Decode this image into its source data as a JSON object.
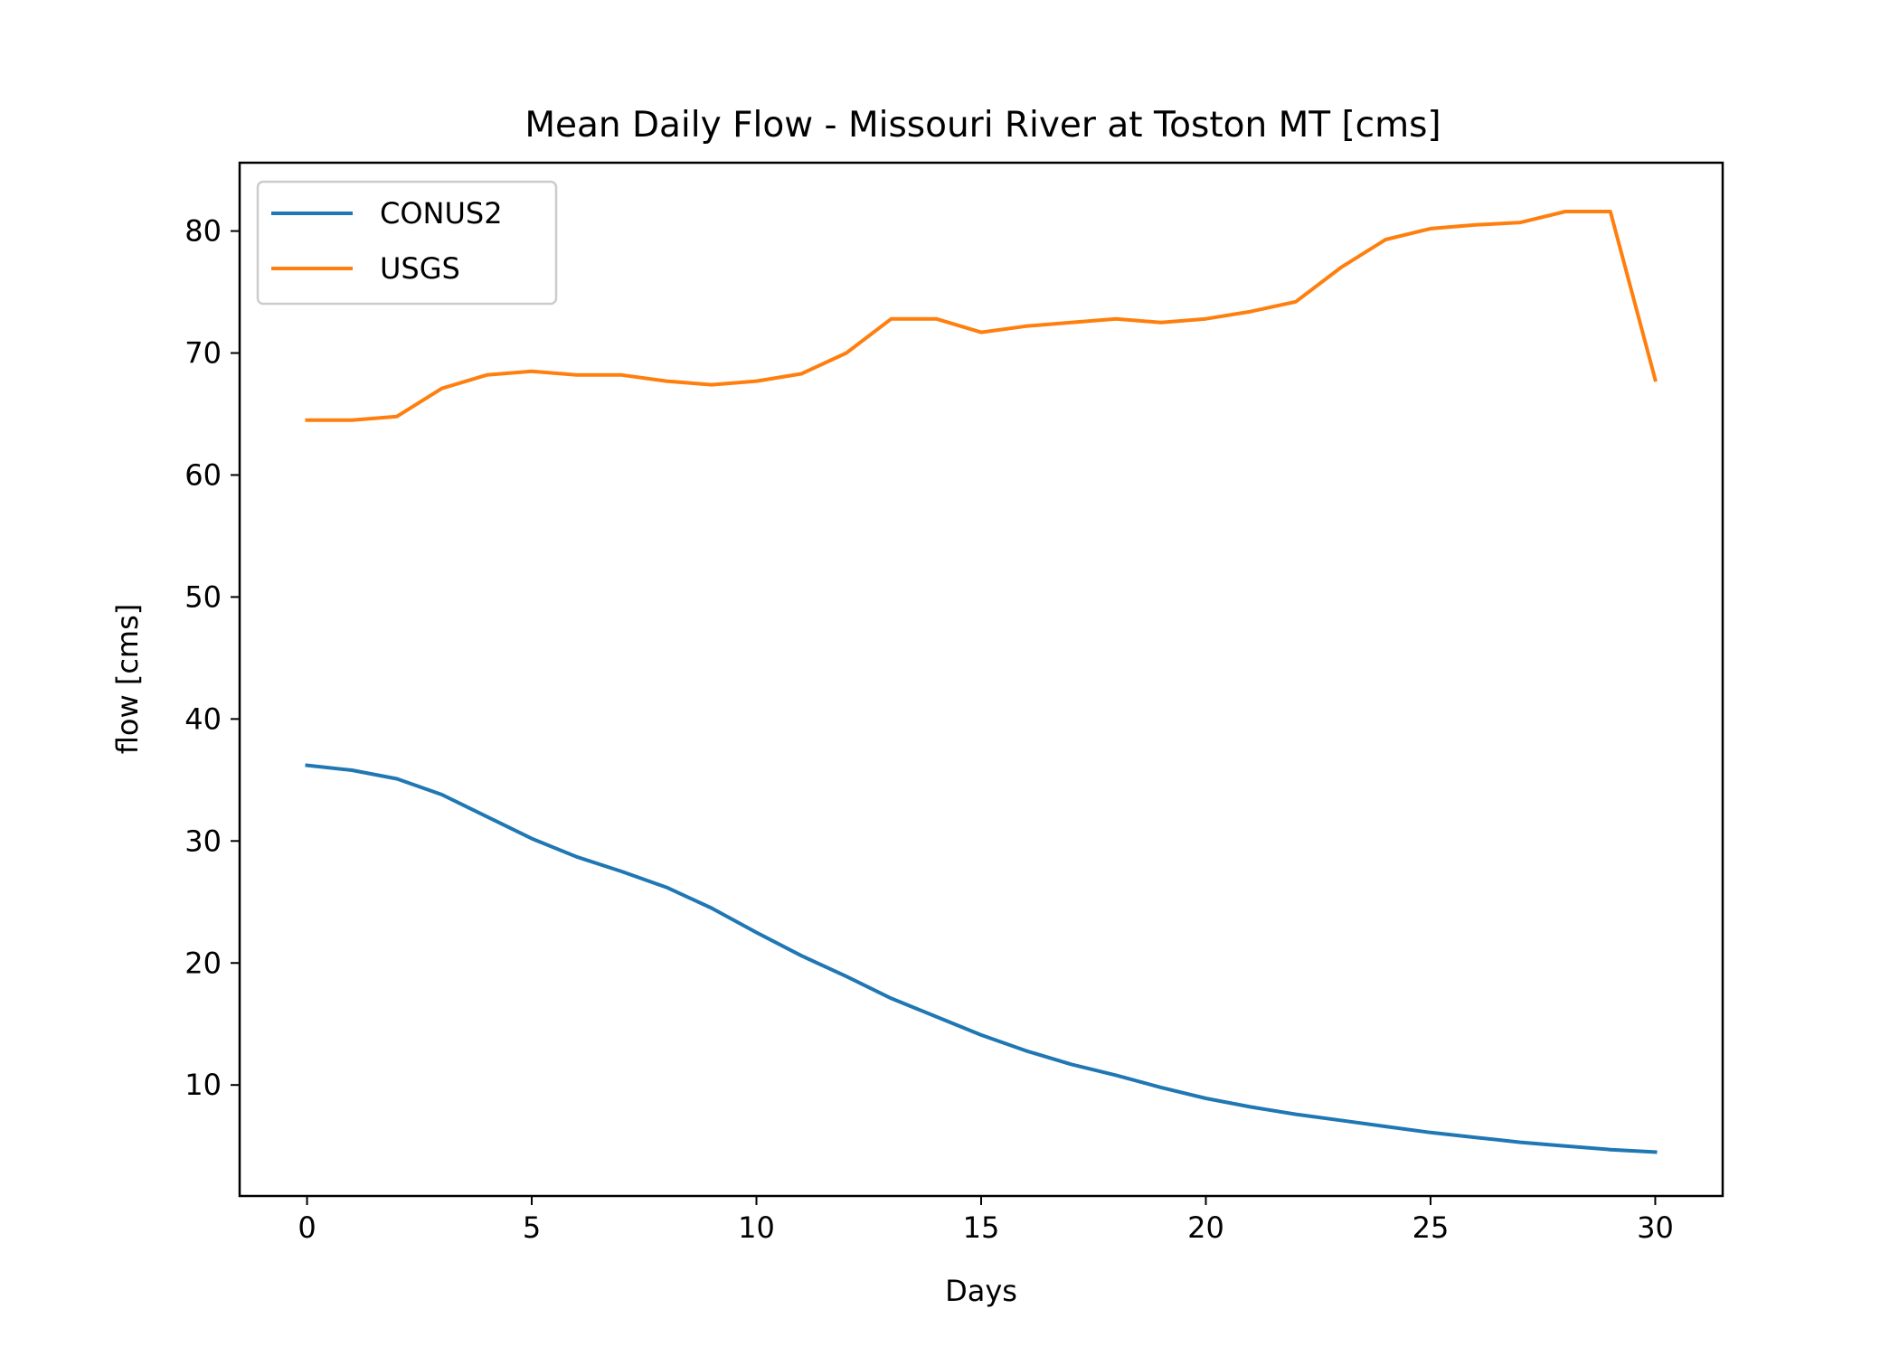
{
  "chart_data": {
    "type": "line",
    "title": "Mean Daily Flow - Missouri River at Toston MT [cms]",
    "xlabel": "Days",
    "ylabel": "flow [cms]",
    "xlim": [
      -1.5,
      31.5
    ],
    "ylim": [
      0.9,
      85.6
    ],
    "xticks": [
      0,
      5,
      10,
      15,
      20,
      25,
      30
    ],
    "yticks": [
      10,
      20,
      30,
      40,
      50,
      60,
      70,
      80
    ],
    "grid": false,
    "legend_position": "top-left",
    "x": [
      0,
      1,
      2,
      3,
      4,
      5,
      6,
      7,
      8,
      9,
      10,
      11,
      12,
      13,
      14,
      15,
      16,
      17,
      18,
      19,
      20,
      21,
      22,
      23,
      24,
      25,
      26,
      27,
      28,
      29,
      30
    ],
    "series": [
      {
        "name": "CONUS2",
        "color": "#1f77b4",
        "values": [
          36.2,
          35.8,
          35.1,
          33.8,
          32.0,
          30.2,
          28.7,
          27.5,
          26.2,
          24.5,
          22.5,
          20.6,
          18.9,
          17.1,
          15.6,
          14.1,
          12.8,
          11.7,
          10.8,
          9.8,
          8.9,
          8.2,
          7.6,
          7.1,
          6.6,
          6.1,
          5.7,
          5.3,
          5.0,
          4.7,
          4.5
        ]
      },
      {
        "name": "USGS",
        "color": "#ff7f0e",
        "values": [
          64.5,
          64.5,
          64.8,
          67.1,
          68.2,
          68.5,
          68.2,
          68.2,
          67.7,
          67.4,
          67.7,
          68.3,
          70.0,
          72.8,
          72.8,
          71.7,
          72.2,
          72.5,
          72.8,
          72.5,
          72.8,
          73.4,
          74.2,
          77.0,
          79.3,
          80.2,
          80.5,
          80.7,
          81.6,
          81.6,
          67.8
        ]
      }
    ]
  }
}
